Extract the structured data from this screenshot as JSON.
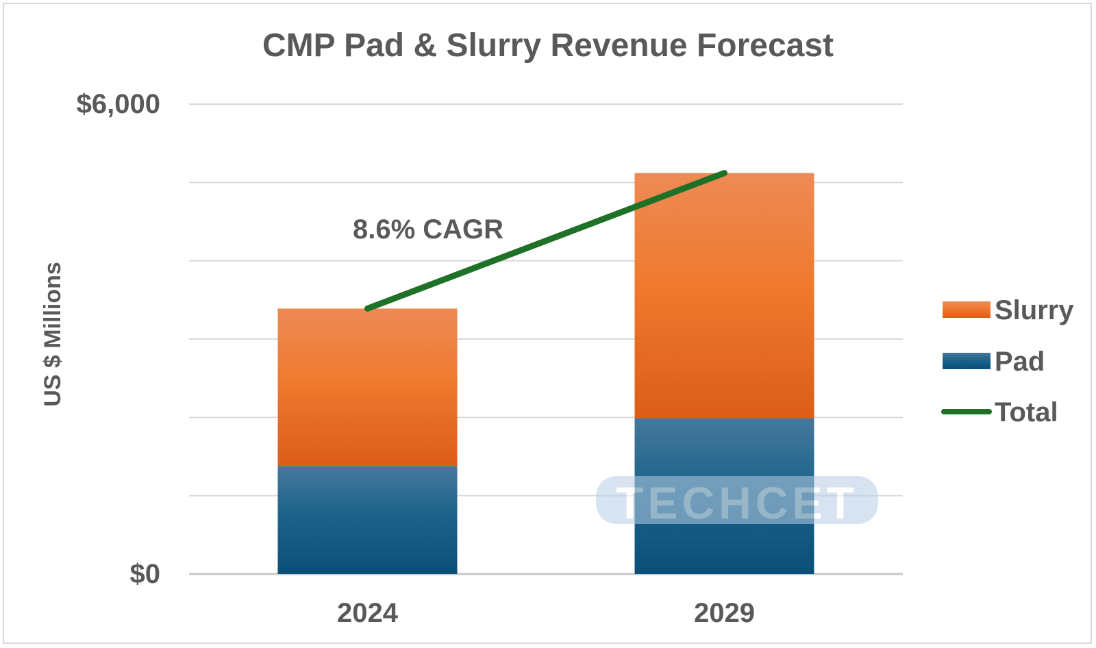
{
  "chart_data": {
    "type": "bar",
    "stacked": true,
    "title": "CMP Pad & Slurry Revenue Forecast",
    "ylabel": "US $ Millions",
    "xlabel": "",
    "categories": [
      "2024",
      "2029"
    ],
    "ylim": [
      0,
      6000
    ],
    "y_tick_labels": [
      {
        "value": 0,
        "label": "$0"
      },
      {
        "value": 6000,
        "label": "$6,000"
      }
    ],
    "gridline_values": [
      0,
      1000,
      2000,
      3000,
      4000,
      5000,
      6000
    ],
    "grid": true,
    "series": [
      {
        "name": "Pad",
        "values": [
          1380,
          1990
        ],
        "color": "#1f5f86"
      },
      {
        "name": "Slurry",
        "values": [
          2010,
          3130
        ],
        "color": "#ec7431"
      }
    ],
    "line_series": {
      "name": "Total",
      "values": [
        3390,
        5120
      ],
      "color": "#1e7126"
    },
    "annotation": "8.6% CAGR",
    "legend": {
      "placement": "right",
      "items": [
        {
          "label": "Slurry",
          "kind": "box",
          "color": "#ec7431"
        },
        {
          "label": "Pad",
          "kind": "box",
          "color": "#1f5f86"
        },
        {
          "label": "Total",
          "kind": "line",
          "color": "#1e7126"
        }
      ]
    },
    "watermark": "TECHCET"
  }
}
